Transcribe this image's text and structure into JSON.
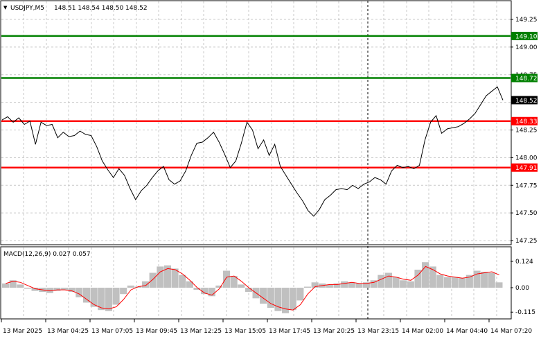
{
  "header": {
    "menu_arrow": "▼",
    "symbol": "USDJPY,M5",
    "ohlc": "148.51 148.54 148.50 148.52"
  },
  "macd": {
    "label": "MACD(12,26,9) 0.027 0.057"
  },
  "colors": {
    "background": "#ffffff",
    "grid": "#c8c8c8",
    "price_line": "#000000",
    "green_level": "#008000",
    "red_level": "#ff0000",
    "histogram": "#c0c0c0",
    "signal": "#ff0000"
  },
  "chart_data": [
    {
      "type": "line",
      "y_ticks": [
        "149.25",
        "149.00",
        "148.75",
        "148.25",
        "148.00",
        "147.75",
        "147.50",
        "147.25"
      ],
      "ylim": [
        147.2,
        149.35
      ],
      "current_price_label": "148.52",
      "levels": [
        {
          "value": 149.1,
          "label": "149.10",
          "color": "#008000"
        },
        {
          "value": 148.72,
          "label": "148.72",
          "color": "#008000"
        },
        {
          "value": 148.33,
          "label": "148.33",
          "color": "#ff0000"
        },
        {
          "value": 147.91,
          "label": "147.91",
          "color": "#ff0000"
        }
      ],
      "series": [
        {
          "values": [
            148.34,
            148.37,
            148.32,
            148.36,
            148.3,
            148.33,
            148.12,
            148.32,
            148.29,
            148.3,
            148.18,
            148.23,
            148.19,
            148.2,
            148.24,
            148.21,
            148.2,
            148.1,
            147.97,
            147.89,
            147.82,
            147.9,
            147.84,
            147.72,
            147.62,
            147.7,
            147.75,
            147.82,
            147.88,
            147.92,
            147.8,
            147.76,
            147.79,
            147.88,
            148.02,
            148.13,
            148.14,
            148.18,
            148.23,
            148.14,
            148.03,
            147.91,
            147.97,
            148.13,
            148.32,
            148.25,
            148.08,
            148.16,
            148.02,
            148.12,
            147.92,
            147.84,
            147.76,
            147.68,
            147.61,
            147.52,
            147.47,
            147.53,
            147.62,
            147.66,
            147.71,
            147.72,
            147.71,
            147.75,
            147.72,
            147.76,
            147.78,
            147.82,
            147.8,
            147.76,
            147.88,
            147.93,
            147.91,
            147.92,
            147.9,
            147.93,
            148.16,
            148.32,
            148.38,
            148.22,
            148.26,
            148.27,
            148.28,
            148.31,
            148.35,
            148.4,
            148.48,
            148.56,
            148.6,
            148.64,
            148.52
          ]
        }
      ],
      "x_ticks": [
        "13 Mar 2025",
        "13 Mar 04:25",
        "13 Mar 07:05",
        "13 Mar 09:45",
        "13 Mar 12:25",
        "13 Mar 15:05",
        "13 Mar 17:45",
        "13 Mar 20:25",
        "13 Mar 23:15",
        "14 Mar 02:00",
        "14 Mar 04:40",
        "14 Mar 07:20"
      ]
    },
    {
      "type": "bar",
      "title": "MACD(12,26,9) 0.027 0.057",
      "y_ticks": [
        "0.124",
        "0.00",
        "-0.115"
      ],
      "ylim": [
        -0.13,
        0.14
      ],
      "histogram": [
        0.02,
        0.035,
        0.015,
        -0.005,
        -0.015,
        -0.02,
        -0.025,
        -0.015,
        -0.01,
        -0.02,
        -0.045,
        -0.07,
        -0.09,
        -0.105,
        -0.11,
        -0.08,
        -0.03,
        0.01,
        0.005,
        0.03,
        0.07,
        0.1,
        0.105,
        0.09,
        0.06,
        0.03,
        -0.01,
        -0.03,
        -0.04,
        0.01,
        0.08,
        0.055,
        0.015,
        -0.02,
        -0.05,
        -0.075,
        -0.095,
        -0.11,
        -0.12,
        -0.105,
        -0.06,
        0.005,
        0.025,
        0.02,
        0.015,
        0.02,
        0.03,
        0.025,
        0.02,
        0.025,
        0.035,
        0.06,
        0.07,
        0.05,
        0.035,
        0.03,
        0.085,
        0.12,
        0.1,
        0.06,
        0.05,
        0.05,
        0.045,
        0.06,
        0.08,
        0.075,
        0.07,
        0.025
      ],
      "signal": [
        0.02,
        0.03,
        0.025,
        0.01,
        -0.005,
        -0.01,
        -0.015,
        -0.01,
        -0.01,
        -0.015,
        -0.03,
        -0.055,
        -0.08,
        -0.095,
        -0.1,
        -0.09,
        -0.055,
        -0.01,
        0.005,
        0.01,
        0.04,
        0.075,
        0.09,
        0.085,
        0.065,
        0.035,
        0.0,
        -0.025,
        -0.035,
        -0.005,
        0.05,
        0.055,
        0.03,
        0.0,
        -0.025,
        -0.05,
        -0.075,
        -0.09,
        -0.1,
        -0.105,
        -0.08,
        -0.03,
        0.005,
        0.01,
        0.015,
        0.015,
        0.02,
        0.025,
        0.02,
        0.02,
        0.025,
        0.04,
        0.055,
        0.05,
        0.04,
        0.035,
        0.06,
        0.1,
        0.085,
        0.065,
        0.055,
        0.05,
        0.045,
        0.05,
        0.065,
        0.07,
        0.075,
        0.06
      ]
    }
  ]
}
